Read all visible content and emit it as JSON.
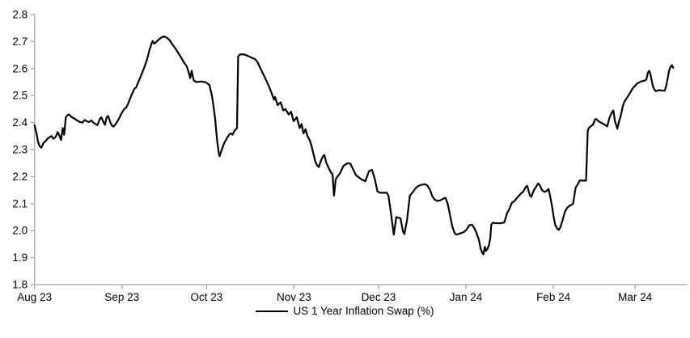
{
  "chart_data": {
    "type": "line",
    "title": "",
    "legend": {
      "position": "bottom-center",
      "entries": [
        "US 1 Year Inflation Swap (%)"
      ]
    },
    "line_color": "#000000",
    "axis_color": "#a6a6a6",
    "text_color": "#000000",
    "grid": false,
    "ylim": [
      1.8,
      2.8
    ],
    "y_ticks": [
      1.8,
      1.9,
      2.0,
      2.1,
      2.2,
      2.3,
      2.4,
      2.5,
      2.6,
      2.7,
      2.8
    ],
    "x_unit": "days since 2023-08-01",
    "xlim_days": [
      0,
      231.6
    ],
    "x_ticks": [
      {
        "label": "Aug 23",
        "day": 0
      },
      {
        "label": "Sep 23",
        "day": 31
      },
      {
        "label": "Oct 23",
        "day": 61
      },
      {
        "label": "Nov 23",
        "day": 92
      },
      {
        "label": "Dec 23",
        "day": 122
      },
      {
        "label": "Jan 24",
        "day": 153
      },
      {
        "label": "Feb 24",
        "day": 184
      },
      {
        "label": "Mar 24",
        "day": 213
      }
    ],
    "series": [
      {
        "name": "US 1 Year Inflation Swap (%)",
        "points": [
          [
            0,
            2.39
          ],
          [
            0.8,
            2.355
          ],
          [
            1.2,
            2.33
          ],
          [
            1.8,
            2.313
          ],
          [
            2.4,
            2.307
          ],
          [
            3.2,
            2.325
          ],
          [
            3.8,
            2.33
          ],
          [
            4.6,
            2.34
          ],
          [
            5.2,
            2.345
          ],
          [
            6,
            2.35
          ],
          [
            6.7,
            2.34
          ],
          [
            7.5,
            2.347
          ],
          [
            8.2,
            2.365
          ],
          [
            8.9,
            2.35
          ],
          [
            9.4,
            2.335
          ],
          [
            10,
            2.38
          ],
          [
            10.5,
            2.355
          ],
          [
            11.1,
            2.42
          ],
          [
            11.8,
            2.428
          ],
          [
            12.2,
            2.43
          ],
          [
            13.2,
            2.42
          ],
          [
            14.1,
            2.415
          ],
          [
            15.1,
            2.408
          ],
          [
            16.1,
            2.402
          ],
          [
            17,
            2.4
          ],
          [
            17.8,
            2.41
          ],
          [
            18.5,
            2.405
          ],
          [
            19.4,
            2.402
          ],
          [
            20.2,
            2.408
          ],
          [
            20.8,
            2.4
          ],
          [
            21.6,
            2.395
          ],
          [
            22.3,
            2.39
          ],
          [
            23.2,
            2.415
          ],
          [
            23.7,
            2.42
          ],
          [
            24.5,
            2.4
          ],
          [
            25,
            2.392
          ],
          [
            25.6,
            2.42
          ],
          [
            26.1,
            2.425
          ],
          [
            26.9,
            2.4
          ],
          [
            27.5,
            2.388
          ],
          [
            28,
            2.385
          ],
          [
            28.8,
            2.395
          ],
          [
            29.4,
            2.405
          ],
          [
            30.2,
            2.42
          ],
          [
            30.9,
            2.435
          ],
          [
            31.8,
            2.45
          ],
          [
            32.5,
            2.455
          ],
          [
            33.2,
            2.47
          ],
          [
            34.3,
            2.5
          ],
          [
            35.4,
            2.525
          ],
          [
            36,
            2.53
          ],
          [
            36.6,
            2.545
          ],
          [
            37.4,
            2.565
          ],
          [
            38,
            2.58
          ],
          [
            38.9,
            2.604
          ],
          [
            39.9,
            2.634
          ],
          [
            40.8,
            2.67
          ],
          [
            41.6,
            2.695
          ],
          [
            41.9,
            2.702
          ],
          [
            42.5,
            2.692
          ],
          [
            43.2,
            2.699
          ],
          [
            44.2,
            2.709
          ],
          [
            45.1,
            2.716
          ],
          [
            46,
            2.719
          ],
          [
            47,
            2.714
          ],
          [
            48,
            2.704
          ],
          [
            48.9,
            2.689
          ],
          [
            50,
            2.674
          ],
          [
            50.9,
            2.659
          ],
          [
            51.8,
            2.644
          ],
          [
            52.8,
            2.626
          ],
          [
            54,
            2.608
          ],
          [
            54.7,
            2.585
          ],
          [
            55.2,
            2.565
          ],
          [
            55.7,
            2.592
          ],
          [
            56.5,
            2.555
          ],
          [
            57.5,
            2.55
          ],
          [
            59,
            2.552
          ],
          [
            60.5,
            2.55
          ],
          [
            62,
            2.54
          ],
          [
            62.9,
            2.5
          ],
          [
            63.5,
            2.46
          ],
          [
            64.1,
            2.41
          ],
          [
            64.7,
            2.34
          ],
          [
            65.3,
            2.29
          ],
          [
            65.6,
            2.275
          ],
          [
            66.4,
            2.3
          ],
          [
            67.3,
            2.325
          ],
          [
            68.1,
            2.34
          ],
          [
            69,
            2.355
          ],
          [
            69.6,
            2.36
          ],
          [
            70.2,
            2.355
          ],
          [
            70.8,
            2.368
          ],
          [
            71.4,
            2.375
          ],
          [
            71.8,
            2.38
          ],
          [
            72.2,
            2.645
          ],
          [
            72.8,
            2.652
          ],
          [
            74,
            2.653
          ],
          [
            75.5,
            2.648
          ],
          [
            77,
            2.64
          ],
          [
            78.2,
            2.635
          ],
          [
            79,
            2.625
          ],
          [
            80.4,
            2.594
          ],
          [
            81.8,
            2.565
          ],
          [
            83.3,
            2.53
          ],
          [
            84.4,
            2.5
          ],
          [
            84.9,
            2.485
          ],
          [
            85.3,
            2.495
          ],
          [
            86.2,
            2.465
          ],
          [
            87.3,
            2.475
          ],
          [
            88.2,
            2.445
          ],
          [
            89,
            2.45
          ],
          [
            90.1,
            2.43
          ],
          [
            91,
            2.44
          ],
          [
            91.9,
            2.405
          ],
          [
            93,
            2.42
          ],
          [
            94,
            2.38
          ],
          [
            94.7,
            2.395
          ],
          [
            95.4,
            2.36
          ],
          [
            96.1,
            2.375
          ],
          [
            96.8,
            2.35
          ],
          [
            97.6,
            2.335
          ],
          [
            98.2,
            2.315
          ],
          [
            98.9,
            2.285
          ],
          [
            99.6,
            2.255
          ],
          [
            100.3,
            2.24
          ],
          [
            100.8,
            2.235
          ],
          [
            101.6,
            2.26
          ],
          [
            102.3,
            2.275
          ],
          [
            102.8,
            2.28
          ],
          [
            103.5,
            2.25
          ],
          [
            104.2,
            2.235
          ],
          [
            105.1,
            2.215
          ],
          [
            105.7,
            2.21
          ],
          [
            106.2,
            2.13
          ],
          [
            106.8,
            2.19
          ],
          [
            107.4,
            2.2
          ],
          [
            108.2,
            2.21
          ],
          [
            109.6,
            2.24
          ],
          [
            111.1,
            2.25
          ],
          [
            112,
            2.248
          ],
          [
            114,
            2.205
          ],
          [
            115.9,
            2.19
          ],
          [
            117.3,
            2.183
          ],
          [
            118.6,
            2.22
          ],
          [
            119.7,
            2.225
          ],
          [
            120.7,
            2.19
          ],
          [
            121.6,
            2.145
          ],
          [
            122.6,
            2.14
          ],
          [
            124.9,
            2.14
          ],
          [
            125.5,
            2.13
          ],
          [
            126.4,
            2.065
          ],
          [
            127.4,
            1.985
          ],
          [
            128.3,
            2.05
          ],
          [
            129.8,
            2.045
          ],
          [
            130.7,
            1.995
          ],
          [
            131.2,
            1.988
          ],
          [
            132.1,
            2.04
          ],
          [
            133.1,
            2.13
          ],
          [
            134,
            2.14
          ],
          [
            135,
            2.155
          ],
          [
            136,
            2.165
          ],
          [
            137.4,
            2.17
          ],
          [
            138.4,
            2.172
          ],
          [
            139.3,
            2.167
          ],
          [
            140.3,
            2.15
          ],
          [
            141,
            2.128
          ],
          [
            141.9,
            2.115
          ],
          [
            142.9,
            2.11
          ],
          [
            143.8,
            2.112
          ],
          [
            144.8,
            2.117
          ],
          [
            145.7,
            2.122
          ],
          [
            146.5,
            2.1
          ],
          [
            147.4,
            2.055
          ],
          [
            148.1,
            2.018
          ],
          [
            148.9,
            1.993
          ],
          [
            149.5,
            1.985
          ],
          [
            150.5,
            1.988
          ],
          [
            151.6,
            1.992
          ],
          [
            152.3,
            1.995
          ],
          [
            153.3,
            2.005
          ],
          [
            154.2,
            2.02
          ],
          [
            155.2,
            2.022
          ],
          [
            156,
            2.008
          ],
          [
            156.6,
            1.995
          ],
          [
            157.6,
            1.965
          ],
          [
            158.2,
            1.934
          ],
          [
            158.8,
            1.918
          ],
          [
            159.2,
            1.912
          ],
          [
            159.7,
            1.94
          ],
          [
            160.1,
            1.925
          ],
          [
            160.6,
            1.932
          ],
          [
            161.1,
            1.945
          ],
          [
            161.6,
            1.97
          ],
          [
            162,
            2.023
          ],
          [
            162.6,
            2.029
          ],
          [
            163.3,
            2.028
          ],
          [
            165,
            2.027
          ],
          [
            166.6,
            2.03
          ],
          [
            167.6,
            2.065
          ],
          [
            168.3,
            2.078
          ],
          [
            169.3,
            2.103
          ],
          [
            170.2,
            2.11
          ],
          [
            171.4,
            2.125
          ],
          [
            172.3,
            2.135
          ],
          [
            173.3,
            2.145
          ],
          [
            174.2,
            2.161
          ],
          [
            174.7,
            2.166
          ],
          [
            175.7,
            2.13
          ],
          [
            176.2,
            2.125
          ],
          [
            177.1,
            2.15
          ],
          [
            178.1,
            2.166
          ],
          [
            178.6,
            2.175
          ],
          [
            179.2,
            2.168
          ],
          [
            180,
            2.15
          ],
          [
            180.9,
            2.143
          ],
          [
            181.7,
            2.148
          ],
          [
            182.3,
            2.154
          ],
          [
            183,
            2.12
          ],
          [
            183.6,
            2.085
          ],
          [
            184.2,
            2.045
          ],
          [
            184.7,
            2.02
          ],
          [
            185.4,
            2.007
          ],
          [
            186,
            2.003
          ],
          [
            186.6,
            2.015
          ],
          [
            187.4,
            2.043
          ],
          [
            188.1,
            2.07
          ],
          [
            188.8,
            2.083
          ],
          [
            189.5,
            2.09
          ],
          [
            190.3,
            2.095
          ],
          [
            191,
            2.1
          ],
          [
            191.9,
            2.159
          ],
          [
            192.6,
            2.171
          ],
          [
            193.4,
            2.186
          ],
          [
            194.5,
            2.185
          ],
          [
            195.6,
            2.185
          ],
          [
            196.2,
            2.37
          ],
          [
            196.6,
            2.38
          ],
          [
            197.1,
            2.385
          ],
          [
            198,
            2.392
          ],
          [
            198.8,
            2.412
          ],
          [
            199.2,
            2.413
          ],
          [
            200,
            2.405
          ],
          [
            201,
            2.399
          ],
          [
            201.9,
            2.394
          ],
          [
            203.1,
            2.386
          ],
          [
            203.8,
            2.415
          ],
          [
            204.8,
            2.439
          ],
          [
            205.3,
            2.445
          ],
          [
            205.8,
            2.407
          ],
          [
            206.7,
            2.377
          ],
          [
            207.3,
            2.405
          ],
          [
            207.9,
            2.425
          ],
          [
            208.6,
            2.459
          ],
          [
            209.1,
            2.475
          ],
          [
            209.9,
            2.489
          ],
          [
            210.6,
            2.5
          ],
          [
            211.5,
            2.515
          ],
          [
            212.1,
            2.526
          ],
          [
            212.9,
            2.535
          ],
          [
            213.6,
            2.544
          ],
          [
            214.3,
            2.548
          ],
          [
            215.3,
            2.553
          ],
          [
            216.3,
            2.555
          ],
          [
            217,
            2.56
          ],
          [
            217.5,
            2.584
          ],
          [
            218,
            2.592
          ],
          [
            218.4,
            2.58
          ],
          [
            218.8,
            2.56
          ],
          [
            219.3,
            2.535
          ],
          [
            219.8,
            2.523
          ],
          [
            220.3,
            2.516
          ],
          [
            221.3,
            2.52
          ],
          [
            223.5,
            2.518
          ],
          [
            224,
            2.535
          ],
          [
            224.5,
            2.562
          ],
          [
            225,
            2.59
          ],
          [
            225.5,
            2.605
          ],
          [
            226,
            2.613
          ],
          [
            226.5,
            2.603
          ]
        ]
      }
    ]
  }
}
